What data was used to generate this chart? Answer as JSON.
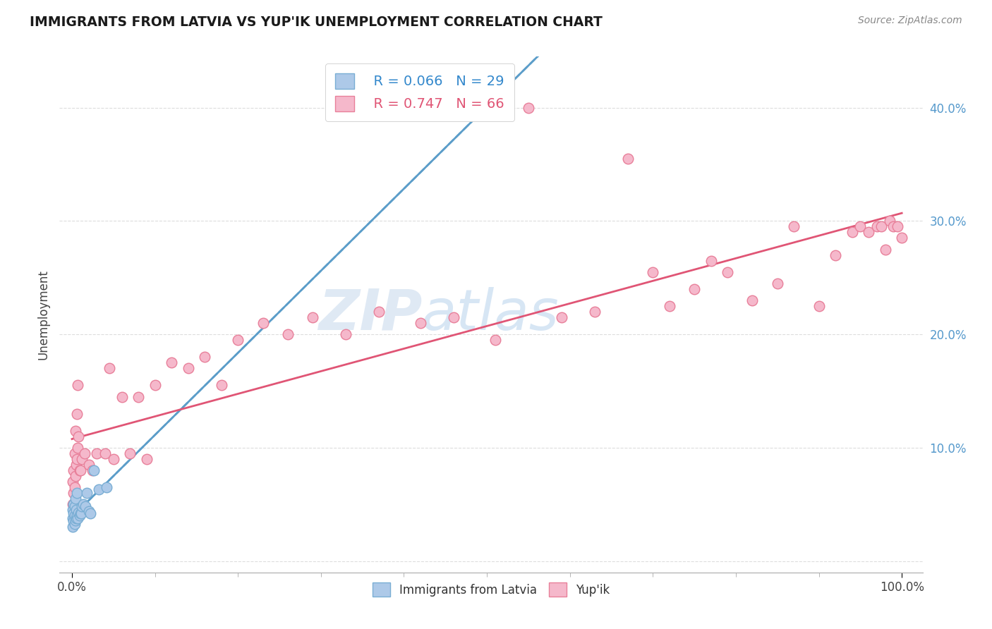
{
  "title": "IMMIGRANTS FROM LATVIA VS YUP'IK UNEMPLOYMENT CORRELATION CHART",
  "source": "Source: ZipAtlas.com",
  "ylabel": "Unemployment",
  "watermark_zip": "ZIP",
  "watermark_atlas": "atlas",
  "legend_blue_label": "Immigrants from Latvia",
  "legend_pink_label": "Yup'ik",
  "legend_blue_r": "R = 0.066",
  "legend_blue_n": "N = 29",
  "legend_pink_r": "R = 0.747",
  "legend_pink_n": "N = 66",
  "blue_color": "#adc9e8",
  "blue_edge_color": "#7aaed4",
  "pink_color": "#f5b8cb",
  "pink_edge_color": "#e8809a",
  "blue_line_color": "#5b9dc9",
  "pink_line_color": "#e05575",
  "background_color": "#ffffff",
  "grid_color": "#dddddd",
  "blue_x": [
    0.001,
    0.001,
    0.001,
    0.002,
    0.002,
    0.002,
    0.003,
    0.003,
    0.003,
    0.004,
    0.004,
    0.005,
    0.005,
    0.006,
    0.006,
    0.007,
    0.008,
    0.009,
    0.01,
    0.011,
    0.012,
    0.014,
    0.016,
    0.018,
    0.02,
    0.022,
    0.026,
    0.032,
    0.042
  ],
  "blue_y": [
    0.03,
    0.038,
    0.045,
    0.035,
    0.042,
    0.05,
    0.033,
    0.04,
    0.048,
    0.036,
    0.055,
    0.038,
    0.045,
    0.04,
    0.06,
    0.038,
    0.043,
    0.04,
    0.042,
    0.042,
    0.048,
    0.05,
    0.048,
    0.06,
    0.044,
    0.042,
    0.08,
    0.063,
    0.065
  ],
  "pink_x": [
    0.001,
    0.001,
    0.002,
    0.002,
    0.003,
    0.003,
    0.004,
    0.004,
    0.005,
    0.006,
    0.006,
    0.007,
    0.007,
    0.008,
    0.009,
    0.01,
    0.012,
    0.015,
    0.02,
    0.025,
    0.03,
    0.04,
    0.045,
    0.05,
    0.06,
    0.07,
    0.08,
    0.09,
    0.1,
    0.12,
    0.14,
    0.16,
    0.18,
    0.2,
    0.23,
    0.26,
    0.29,
    0.33,
    0.37,
    0.42,
    0.46,
    0.51,
    0.55,
    0.59,
    0.63,
    0.67,
    0.7,
    0.72,
    0.75,
    0.77,
    0.79,
    0.82,
    0.85,
    0.87,
    0.9,
    0.92,
    0.94,
    0.95,
    0.96,
    0.97,
    0.975,
    0.98,
    0.985,
    0.99,
    0.995,
    1.0
  ],
  "pink_y": [
    0.05,
    0.07,
    0.06,
    0.08,
    0.065,
    0.095,
    0.075,
    0.115,
    0.085,
    0.09,
    0.13,
    0.1,
    0.155,
    0.11,
    0.08,
    0.08,
    0.09,
    0.095,
    0.085,
    0.08,
    0.095,
    0.095,
    0.17,
    0.09,
    0.145,
    0.095,
    0.145,
    0.09,
    0.155,
    0.175,
    0.17,
    0.18,
    0.155,
    0.195,
    0.21,
    0.2,
    0.215,
    0.2,
    0.22,
    0.21,
    0.215,
    0.195,
    0.4,
    0.215,
    0.22,
    0.355,
    0.255,
    0.225,
    0.24,
    0.265,
    0.255,
    0.23,
    0.245,
    0.295,
    0.225,
    0.27,
    0.29,
    0.295,
    0.29,
    0.295,
    0.295,
    0.275,
    0.3,
    0.295,
    0.295,
    0.285
  ]
}
